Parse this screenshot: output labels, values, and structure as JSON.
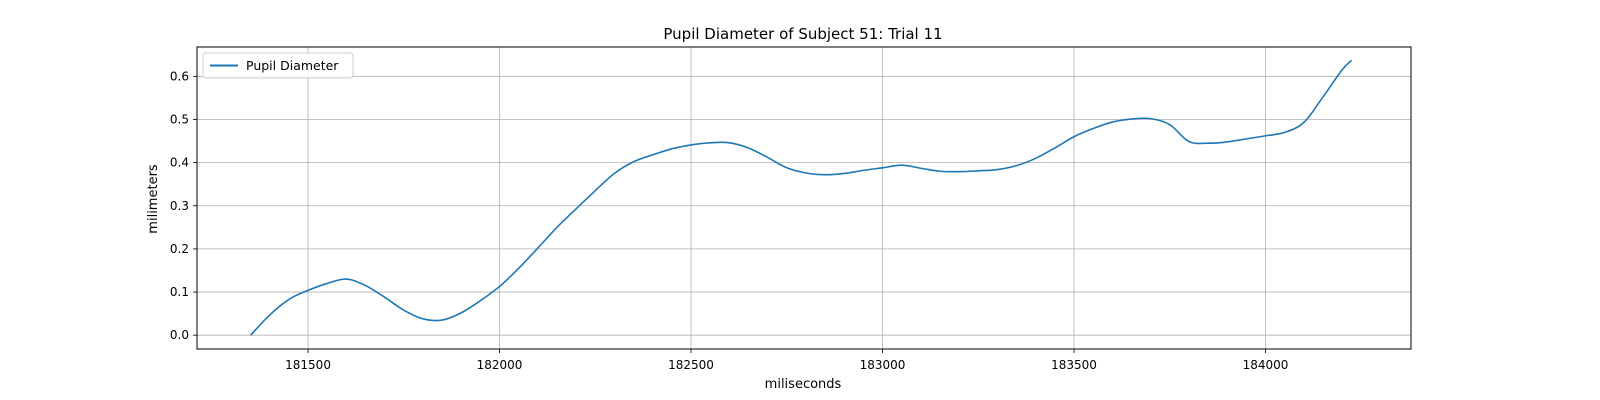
{
  "chart_data": {
    "type": "line",
    "title": "Pupil Diameter of Subject 51: Trial 11",
    "xlabel": "miliseconds",
    "ylabel": "milimeters",
    "xlim": [
      181210,
      184380
    ],
    "ylim": [
      -0.032,
      0.668
    ],
    "xticks": [
      181500,
      182000,
      182500,
      183000,
      183500,
      184000
    ],
    "yticks": [
      0.0,
      0.1,
      0.2,
      0.3,
      0.4,
      0.5,
      0.6
    ],
    "ytick_labels": [
      "0.0",
      "0.1",
      "0.2",
      "0.3",
      "0.4",
      "0.5",
      "0.6"
    ],
    "grid": true,
    "legend_position": "top-left",
    "series": [
      {
        "name": "Pupil Diameter",
        "color": "#1f77b4",
        "x": [
          181350,
          181400,
          181450,
          181500,
          181550,
          181600,
          181650,
          181700,
          181750,
          181800,
          181850,
          181900,
          181950,
          182000,
          182050,
          182100,
          182150,
          182200,
          182250,
          182300,
          182350,
          182400,
          182450,
          182500,
          182550,
          182600,
          182650,
          182700,
          182750,
          182800,
          182850,
          182900,
          182950,
          183000,
          183050,
          183100,
          183150,
          183200,
          183250,
          183300,
          183350,
          183400,
          183450,
          183500,
          183550,
          183600,
          183650,
          183700,
          183750,
          183800,
          183850,
          183900,
          183950,
          184000,
          184050,
          184100,
          184150,
          184200,
          184225
        ],
        "y": [
          0.0,
          0.047,
          0.083,
          0.104,
          0.12,
          0.13,
          0.115,
          0.088,
          0.058,
          0.038,
          0.035,
          0.052,
          0.08,
          0.113,
          0.155,
          0.202,
          0.25,
          0.293,
          0.335,
          0.375,
          0.402,
          0.418,
          0.432,
          0.441,
          0.446,
          0.446,
          0.434,
          0.412,
          0.388,
          0.376,
          0.372,
          0.375,
          0.382,
          0.388,
          0.394,
          0.387,
          0.38,
          0.379,
          0.381,
          0.384,
          0.393,
          0.41,
          0.434,
          0.46,
          0.479,
          0.494,
          0.501,
          0.502,
          0.488,
          0.449,
          0.445,
          0.448,
          0.455,
          0.462,
          0.47,
          0.493,
          0.552,
          0.615,
          0.637
        ]
      }
    ]
  }
}
